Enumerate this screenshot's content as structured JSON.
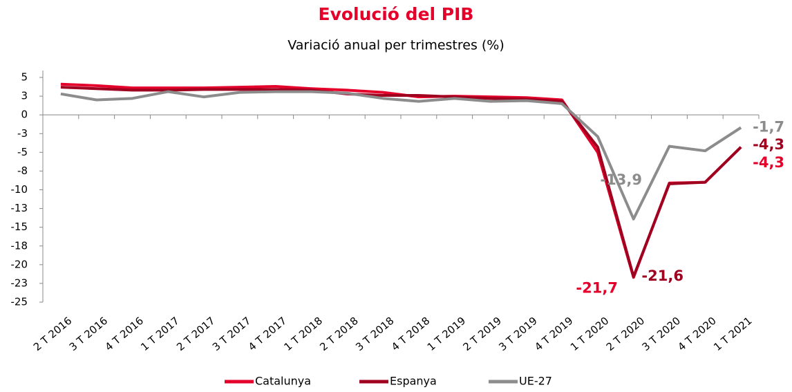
{
  "chart_data": {
    "type": "line",
    "title": "Evolució del PIB",
    "subtitle": "Variació anual per trimestres (%)",
    "categories": [
      "2 T 2016",
      "3 T 2016",
      "4 T 2016",
      "1 T 2017",
      "2 T 2017",
      "3 T 2017",
      "4 T 2017",
      "1 T 2018",
      "2 T 2018",
      "3 T 2018",
      "4 T 2018",
      "1 T 2019",
      "2 T 2019",
      "3 T 2019",
      "4 T 2019",
      "1 T 2020",
      "2 T 2020",
      "3 T 2020",
      "4 T 2020",
      "1 T 2021"
    ],
    "series": [
      {
        "name": "Catalunya",
        "color": "#e4002b",
        "values": [
          4.1,
          3.9,
          3.6,
          3.6,
          3.6,
          3.7,
          3.8,
          3.5,
          3.3,
          3.0,
          2.4,
          2.5,
          2.4,
          2.3,
          2.0,
          -5.0,
          -21.7,
          -9.1,
          -9.0,
          -4.3
        ],
        "value_labels": [
          null,
          null,
          null,
          null,
          null,
          null,
          null,
          null,
          null,
          null,
          null,
          null,
          null,
          null,
          null,
          null,
          "-21,7",
          null,
          null,
          "-4,3"
        ]
      },
      {
        "name": "Espanya",
        "color": "#a0001f",
        "values": [
          3.7,
          3.5,
          3.3,
          3.3,
          3.4,
          3.4,
          3.4,
          3.3,
          2.8,
          2.6,
          2.6,
          2.4,
          2.2,
          2.1,
          1.8,
          -4.3,
          -21.6,
          -9.2,
          -9.0,
          -4.3
        ],
        "value_labels": [
          null,
          null,
          null,
          null,
          null,
          null,
          null,
          null,
          null,
          null,
          null,
          null,
          null,
          null,
          null,
          null,
          "-21,6",
          null,
          null,
          "-4,3"
        ]
      },
      {
        "name": "UE-27",
        "color": "#8c8c8c",
        "values": [
          2.8,
          2.0,
          2.2,
          3.1,
          2.4,
          3.0,
          3.1,
          3.1,
          2.9,
          2.2,
          1.8,
          2.2,
          1.8,
          1.9,
          1.5,
          -2.9,
          -13.9,
          -4.2,
          -4.8,
          -1.7
        ],
        "value_labels": [
          null,
          null,
          null,
          null,
          null,
          null,
          null,
          null,
          null,
          null,
          null,
          null,
          null,
          null,
          null,
          null,
          "-13,9",
          null,
          null,
          "-1,7"
        ]
      }
    ],
    "ylim": [
      -25,
      5
    ],
    "yticks": [
      5,
      {
        "value": 2.5,
        "label": "3"
      },
      0,
      {
        "value": -2.5,
        "label": "-3"
      },
      -5,
      {
        "value": -7.5,
        "label": "-8"
      },
      -10,
      {
        "value": -12.5,
        "label": "-13"
      },
      -15,
      {
        "value": -17.5,
        "label": "-18"
      },
      -20,
      {
        "value": -22.5,
        "label": "-23"
      },
      -25
    ],
    "legend": "bottom"
  }
}
